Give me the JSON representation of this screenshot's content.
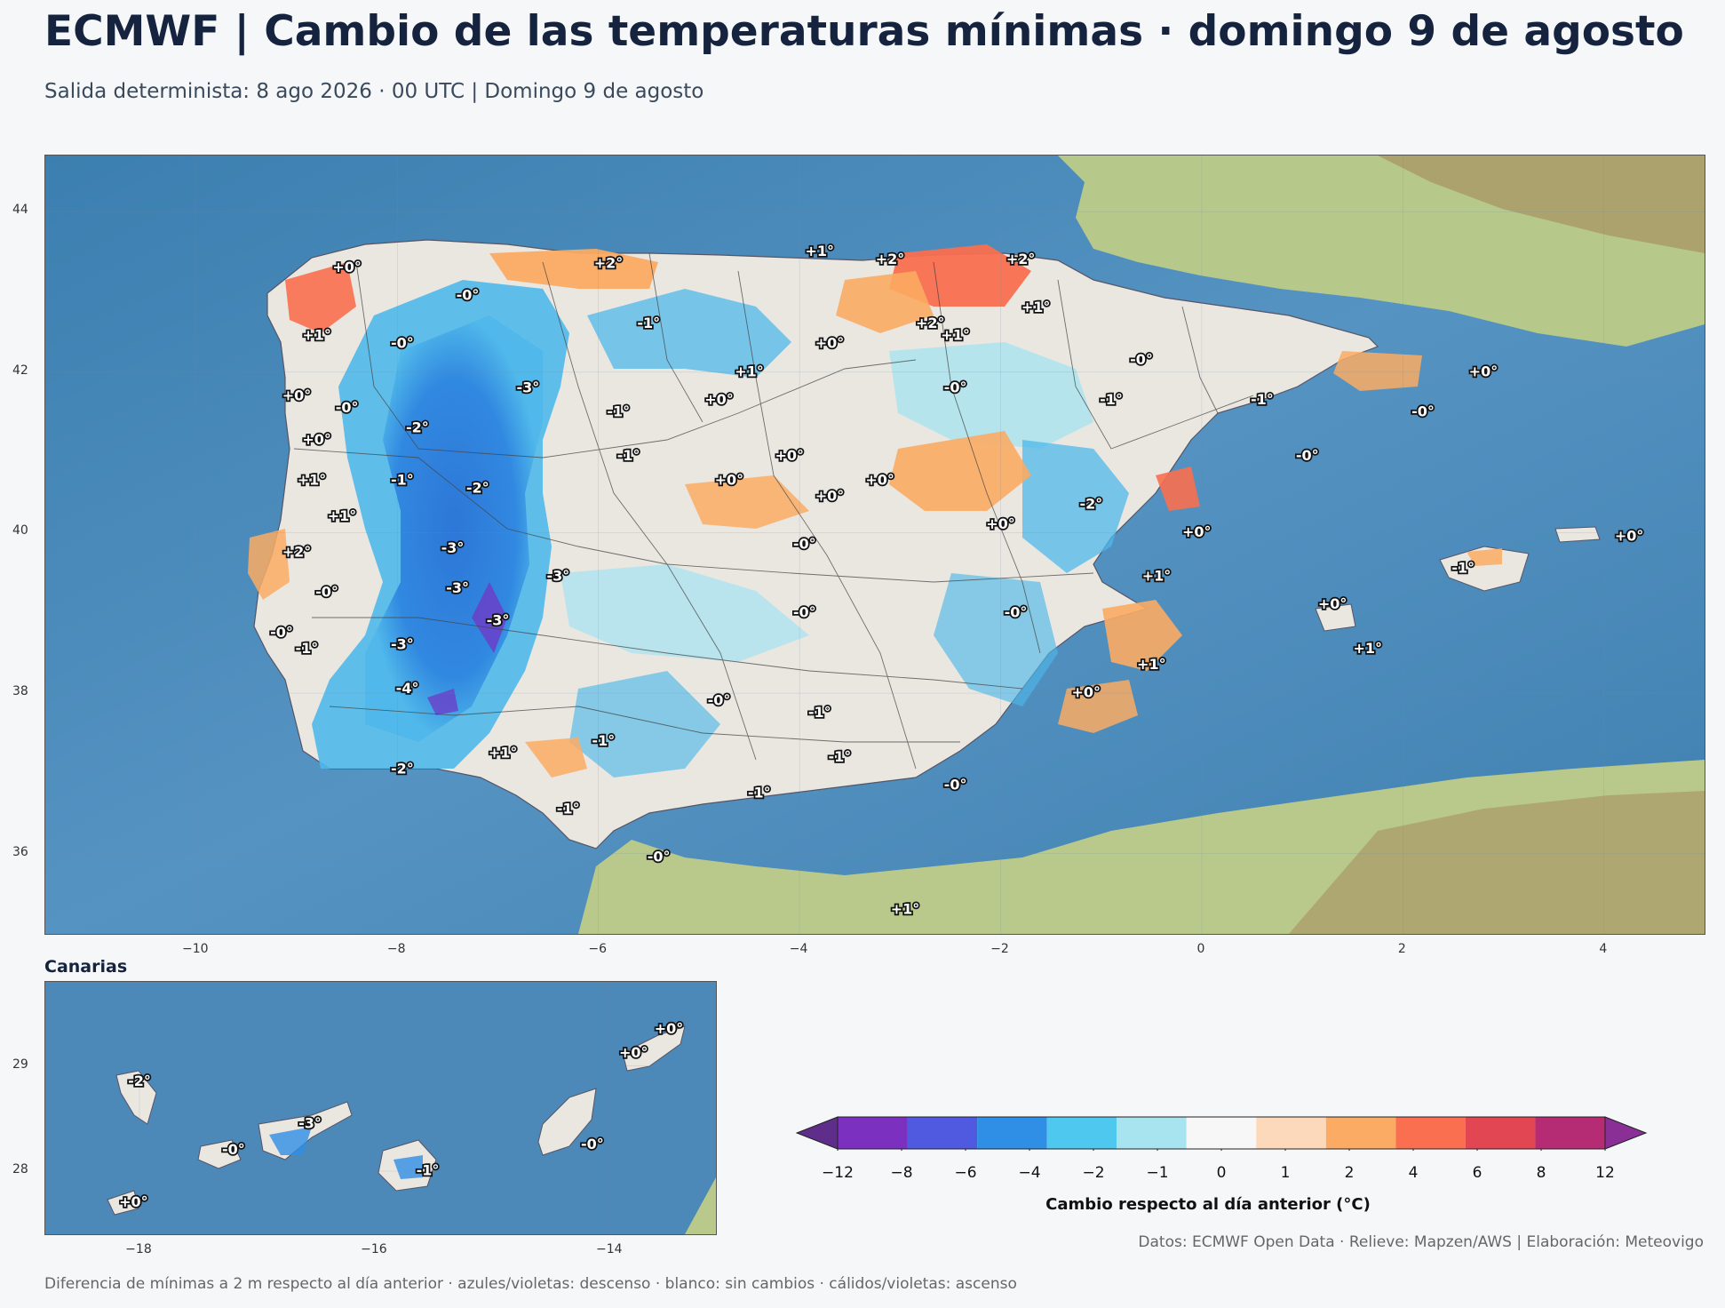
{
  "title": "ECMWF | Cambio de las temperaturas mínimas · domingo 9 de agosto",
  "subtitle": "Salida determinista: 8 ago 2026 · 00 UTC  |  Domingo 9 de agosto",
  "main_map": {
    "extent": {
      "lon": [
        -11.5,
        5.0
      ],
      "lat": [
        35.0,
        44.7
      ]
    },
    "x_ticks": [
      -10,
      -8,
      -6,
      -4,
      -2,
      0,
      2,
      4
    ],
    "y_ticks": [
      36,
      38,
      40,
      42,
      44
    ],
    "labels": [
      {
        "lon": -8.5,
        "lat": 43.3,
        "text": "+0°"
      },
      {
        "lon": -7.3,
        "lat": 42.95,
        "text": "-0°"
      },
      {
        "lon": -5.9,
        "lat": 43.35,
        "text": "+2°"
      },
      {
        "lon": -3.8,
        "lat": 43.5,
        "text": "+1°"
      },
      {
        "lon": -3.1,
        "lat": 43.4,
        "text": "+2°"
      },
      {
        "lon": -1.8,
        "lat": 43.4,
        "text": "+2°"
      },
      {
        "lon": -1.65,
        "lat": 42.8,
        "text": "+1°"
      },
      {
        "lon": -2.7,
        "lat": 42.6,
        "text": "+2°"
      },
      {
        "lon": -2.45,
        "lat": 42.45,
        "text": "+1°"
      },
      {
        "lon": -8.8,
        "lat": 42.45,
        "text": "+1°"
      },
      {
        "lon": -7.95,
        "lat": 42.35,
        "text": "-0°"
      },
      {
        "lon": -5.5,
        "lat": 42.6,
        "text": "-1°"
      },
      {
        "lon": -3.7,
        "lat": 42.35,
        "text": "+0°"
      },
      {
        "lon": -4.5,
        "lat": 42.0,
        "text": "+1°"
      },
      {
        "lon": -0.6,
        "lat": 42.15,
        "text": "-0°"
      },
      {
        "lon": 2.8,
        "lat": 42.0,
        "text": "+0°"
      },
      {
        "lon": -9.0,
        "lat": 41.7,
        "text": "+0°"
      },
      {
        "lon": -8.5,
        "lat": 41.55,
        "text": "-0°"
      },
      {
        "lon": -6.7,
        "lat": 41.8,
        "text": "-3°"
      },
      {
        "lon": -4.8,
        "lat": 41.65,
        "text": "+0°"
      },
      {
        "lon": -2.45,
        "lat": 41.8,
        "text": "-0°"
      },
      {
        "lon": -0.9,
        "lat": 41.65,
        "text": "-1°"
      },
      {
        "lon": 0.6,
        "lat": 41.65,
        "text": "-1°"
      },
      {
        "lon": 2.2,
        "lat": 41.5,
        "text": "-0°"
      },
      {
        "lon": -7.8,
        "lat": 41.3,
        "text": "-2°"
      },
      {
        "lon": -5.8,
        "lat": 41.5,
        "text": "-1°"
      },
      {
        "lon": -8.8,
        "lat": 41.15,
        "text": "+0°"
      },
      {
        "lon": -5.7,
        "lat": 40.95,
        "text": "-1°"
      },
      {
        "lon": -4.1,
        "lat": 40.95,
        "text": "+0°"
      },
      {
        "lon": 1.05,
        "lat": 40.95,
        "text": "-0°"
      },
      {
        "lon": -8.85,
        "lat": 40.65,
        "text": "+1°"
      },
      {
        "lon": -7.95,
        "lat": 40.65,
        "text": "-1°"
      },
      {
        "lon": -7.2,
        "lat": 40.55,
        "text": "-2°"
      },
      {
        "lon": -4.7,
        "lat": 40.65,
        "text": "+0°"
      },
      {
        "lon": -3.2,
        "lat": 40.65,
        "text": "+0°"
      },
      {
        "lon": -3.7,
        "lat": 40.45,
        "text": "+0°"
      },
      {
        "lon": -1.1,
        "lat": 40.35,
        "text": "-2°"
      },
      {
        "lon": -8.55,
        "lat": 40.2,
        "text": "+1°"
      },
      {
        "lon": -2.0,
        "lat": 40.1,
        "text": "+0°"
      },
      {
        "lon": -0.05,
        "lat": 40.0,
        "text": "+0°"
      },
      {
        "lon": -3.95,
        "lat": 39.85,
        "text": "-0°"
      },
      {
        "lon": -7.45,
        "lat": 39.8,
        "text": "-3°"
      },
      {
        "lon": -9.0,
        "lat": 39.75,
        "text": "+2°"
      },
      {
        "lon": -6.4,
        "lat": 39.45,
        "text": "-3°"
      },
      {
        "lon": -7.4,
        "lat": 39.3,
        "text": "-3°"
      },
      {
        "lon": -0.45,
        "lat": 39.45,
        "text": "+1°"
      },
      {
        "lon": -8.7,
        "lat": 39.25,
        "text": "-0°"
      },
      {
        "lon": -3.95,
        "lat": 39.0,
        "text": "-0°"
      },
      {
        "lon": -1.85,
        "lat": 39.0,
        "text": "-0°"
      },
      {
        "lon": 1.3,
        "lat": 39.1,
        "text": "+0°"
      },
      {
        "lon": -7.0,
        "lat": 38.9,
        "text": "-3°"
      },
      {
        "lon": -9.15,
        "lat": 38.75,
        "text": "-0°"
      },
      {
        "lon": -8.9,
        "lat": 38.55,
        "text": "-1°"
      },
      {
        "lon": -7.95,
        "lat": 38.6,
        "text": "-3°"
      },
      {
        "lon": -0.5,
        "lat": 38.35,
        "text": "+1°"
      },
      {
        "lon": 1.65,
        "lat": 38.55,
        "text": "+1°"
      },
      {
        "lon": -7.9,
        "lat": 38.05,
        "text": "-4°"
      },
      {
        "lon": -1.15,
        "lat": 38.0,
        "text": "+0°"
      },
      {
        "lon": -4.8,
        "lat": 37.9,
        "text": "-0°"
      },
      {
        "lon": -3.8,
        "lat": 37.75,
        "text": "-1°"
      },
      {
        "lon": -5.95,
        "lat": 37.4,
        "text": "-1°"
      },
      {
        "lon": -6.95,
        "lat": 37.25,
        "text": "+1°"
      },
      {
        "lon": -3.6,
        "lat": 37.2,
        "text": "-1°"
      },
      {
        "lon": -7.95,
        "lat": 37.05,
        "text": "-2°"
      },
      {
        "lon": -2.45,
        "lat": 36.85,
        "text": "-0°"
      },
      {
        "lon": -4.4,
        "lat": 36.75,
        "text": "-1°"
      },
      {
        "lon": -6.3,
        "lat": 36.55,
        "text": "-1°"
      },
      {
        "lon": -5.4,
        "lat": 35.95,
        "text": "-0°"
      },
      {
        "lon": -2.95,
        "lat": 35.3,
        "text": "+1°"
      },
      {
        "lon": 2.6,
        "lat": 39.55,
        "text": "-1°"
      },
      {
        "lon": 4.25,
        "lat": 39.95,
        "text": "+0°"
      }
    ]
  },
  "canary_map": {
    "title": "Canarias",
    "extent": {
      "lon": [
        -18.8,
        -13.1
      ],
      "lat": [
        27.4,
        29.8
      ]
    },
    "x_ticks": [
      -18,
      -16,
      -14
    ],
    "y_ticks": [
      28,
      29
    ],
    "labels": [
      {
        "lon": -18.0,
        "lat": 28.85,
        "text": "-2°"
      },
      {
        "lon": -17.2,
        "lat": 28.2,
        "text": "-0°"
      },
      {
        "lon": -16.55,
        "lat": 28.45,
        "text": "-3°"
      },
      {
        "lon": -15.55,
        "lat": 28.0,
        "text": "-1°"
      },
      {
        "lon": -14.15,
        "lat": 28.25,
        "text": "-0°"
      },
      {
        "lon": -13.8,
        "lat": 29.12,
        "text": "+0°"
      },
      {
        "lon": -13.5,
        "lat": 29.35,
        "text": "+0°"
      },
      {
        "lon": -18.05,
        "lat": 27.7,
        "text": "+0°"
      }
    ]
  },
  "colorbar": {
    "title": "Cambio respecto al día anterior (°C)",
    "boundaries": [
      "−12",
      "−8",
      "−6",
      "−4",
      "−2",
      "−1",
      "0",
      "1",
      "2",
      "4",
      "6",
      "8",
      "12"
    ],
    "colors": [
      "#5e2e8a",
      "#7b30c0",
      "#4f5ae0",
      "#2f8fe6",
      "#4fc8f0",
      "#a8e3f0",
      "#f7f7f7",
      "#fdd9bb",
      "#fbab63",
      "#f96f4f",
      "#e24652",
      "#b52c74",
      "#8a2f95"
    ]
  },
  "credits": "Datos: ECMWF Open Data · Relieve: Mapzen/AWS  |  Elaboración: Meteovigo",
  "footnote": "Diferencia de mínimas a 2 m respecto al día anterior · azules/violetas: descenso · blanco: sin cambios · cálidos/violetas: ascenso"
}
